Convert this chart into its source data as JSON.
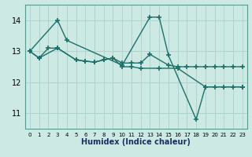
{
  "x": [
    0,
    1,
    2,
    3,
    4,
    5,
    6,
    7,
    8,
    9,
    10,
    11,
    12,
    13,
    14,
    15,
    16,
    17,
    18,
    19,
    20,
    21,
    22,
    23
  ],
  "line1_x": [
    0,
    3,
    4,
    10,
    13,
    14,
    15,
    18,
    19,
    23
  ],
  "line1_y": [
    13.0,
    14.0,
    13.35,
    12.55,
    14.1,
    14.1,
    12.87,
    10.8,
    11.85,
    11.85
  ],
  "line2_x": [
    0,
    1,
    2,
    3,
    5,
    6,
    7,
    8,
    9,
    10,
    11,
    12,
    13,
    15,
    16,
    17,
    18,
    19,
    20,
    21,
    22,
    23
  ],
  "line2_y": [
    13.0,
    12.78,
    13.1,
    13.1,
    12.72,
    12.68,
    12.65,
    12.72,
    12.78,
    12.62,
    12.62,
    12.62,
    12.9,
    12.55,
    12.5,
    12.5,
    12.5,
    12.5,
    12.5,
    12.5,
    12.5,
    12.5
  ],
  "line3_x": [
    0,
    1,
    3,
    5,
    6,
    7,
    8,
    9,
    10,
    11,
    12,
    14,
    16,
    19,
    20,
    21,
    22,
    23
  ],
  "line3_y": [
    13.0,
    12.78,
    13.1,
    12.72,
    12.68,
    12.65,
    12.72,
    12.78,
    12.5,
    12.5,
    12.45,
    12.45,
    12.45,
    11.85,
    11.85,
    11.85,
    11.85,
    11.85
  ],
  "bg_color": "#cce9e4",
  "grid_color": "#afd4ce",
  "line_color": "#1e7068",
  "xlabel": "Humidex (Indice chaleur)",
  "ylim": [
    10.5,
    14.5
  ],
  "xlim": [
    -0.5,
    23.5
  ],
  "yticks": [
    11,
    12,
    13,
    14
  ],
  "xticks": [
    0,
    1,
    2,
    3,
    4,
    5,
    6,
    7,
    8,
    9,
    10,
    11,
    12,
    13,
    14,
    15,
    16,
    17,
    18,
    19,
    20,
    21,
    22,
    23
  ]
}
